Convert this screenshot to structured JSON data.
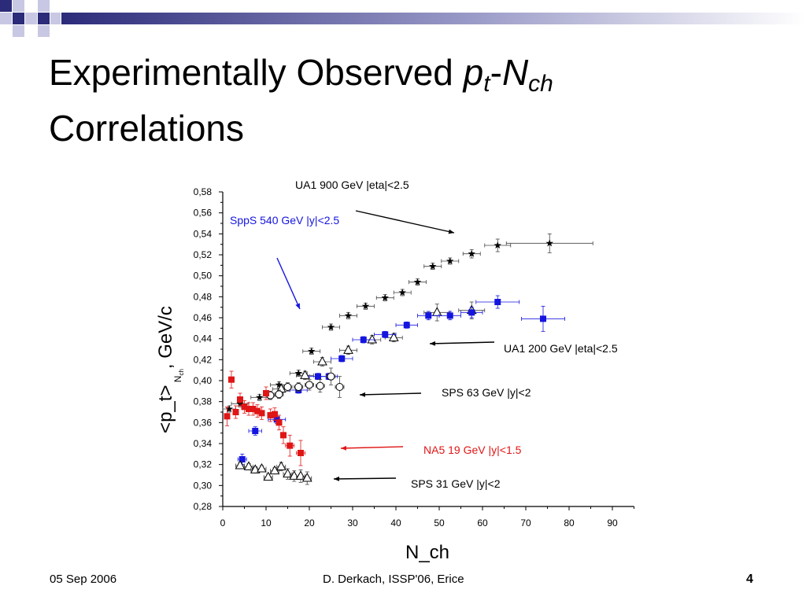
{
  "slide": {
    "title": {
      "line1_prefix": "Experimentally Observed ",
      "p": "p",
      "p_sub": "t",
      "dash": "-",
      "n": "N",
      "n_sub": "ch",
      "line2": "Correlations"
    },
    "footer": {
      "date": "05 Sep 2006",
      "center": "D. Derkach, ISSP'06, Erice",
      "page": "4"
    }
  },
  "colors": {
    "header_blue": "#2b2b7a",
    "series_black": "#000000",
    "series_blue": "#1515e0",
    "series_red": "#e01515",
    "annotation_blue": "#1515e0",
    "annotation_red": "#e01515"
  },
  "chart_data": {
    "type": "scatter",
    "xlabel": "N_ch",
    "ylabel": "<p_t>",
    "ylabel_sub": "N",
    "ylabel_subsub": "ch",
    "ylabel_suffix": ", GeV/c",
    "xlim": [
      0,
      95
    ],
    "ylim": [
      0.28,
      0.58
    ],
    "xticks": [
      0,
      10,
      20,
      30,
      40,
      50,
      60,
      70,
      80,
      90
    ],
    "yticks": [
      "0,28",
      "0,30",
      "0,32",
      "0,34",
      "0,36",
      "0,38",
      "0,40",
      "0,42",
      "0,44",
      "0,46",
      "0,48",
      "0,50",
      "0,52",
      "0,54",
      "0,56",
      "0,58"
    ],
    "series": [
      {
        "name": "UA1 900 GeV |eta|<2.5",
        "marker": "star",
        "color": "#000000",
        "points": [
          {
            "x": 1.5,
            "y": 0.373
          },
          {
            "x": 4,
            "y": 0.378
          },
          {
            "x": 8.5,
            "y": 0.384
          },
          {
            "x": 13,
            "y": 0.396
          },
          {
            "x": 17.5,
            "y": 0.407
          },
          {
            "x": 20.5,
            "y": 0.428
          },
          {
            "x": 25,
            "y": 0.451
          },
          {
            "x": 29,
            "y": 0.462
          },
          {
            "x": 33,
            "y": 0.471
          },
          {
            "x": 37.5,
            "y": 0.479
          },
          {
            "x": 41.5,
            "y": 0.484
          },
          {
            "x": 45,
            "y": 0.494
          },
          {
            "x": 48.5,
            "y": 0.509
          },
          {
            "x": 52.5,
            "y": 0.514
          },
          {
            "x": 57.5,
            "y": 0.521
          },
          {
            "x": 63.5,
            "y": 0.529
          },
          {
            "x": 75.5,
            "y": 0.531
          }
        ],
        "xerr": [
          1.5,
          2,
          2,
          2,
          2,
          2,
          2,
          2,
          2,
          2,
          2,
          2,
          2,
          2,
          2,
          3,
          10
        ],
        "yerr": [
          0.003,
          0.003,
          0.003,
          0.003,
          0.003,
          0.003,
          0.003,
          0.003,
          0.003,
          0.003,
          0.003,
          0.003,
          0.003,
          0.003,
          0.004,
          0.006,
          0.009
        ]
      },
      {
        "name": "UA1 200 GeV |eta|<2.5",
        "marker": "triangle-open",
        "color": "#000000",
        "points": [
          {
            "x": 13.5,
            "y": 0.392
          },
          {
            "x": 19,
            "y": 0.405
          },
          {
            "x": 23,
            "y": 0.418
          },
          {
            "x": 29,
            "y": 0.429
          },
          {
            "x": 34.5,
            "y": 0.439
          },
          {
            "x": 39.5,
            "y": 0.441
          },
          {
            "x": 49.5,
            "y": 0.465
          },
          {
            "x": 57.5,
            "y": 0.467
          }
        ],
        "xerr": [
          2,
          2,
          2,
          2,
          2,
          2,
          3,
          3
        ],
        "yerr": [
          0.004,
          0.004,
          0.004,
          0.004,
          0.004,
          0.004,
          0.008,
          0.008
        ]
      },
      {
        "name": "SppS 540 GeV |y|<2.5",
        "marker": "square",
        "color": "#1515e0",
        "points": [
          {
            "x": 4.5,
            "y": 0.325
          },
          {
            "x": 7.5,
            "y": 0.352
          },
          {
            "x": 12.5,
            "y": 0.363
          },
          {
            "x": 17.5,
            "y": 0.391
          },
          {
            "x": 22,
            "y": 0.404
          },
          {
            "x": 24.5,
            "y": 0.404
          },
          {
            "x": 27.5,
            "y": 0.421
          },
          {
            "x": 32.5,
            "y": 0.439
          },
          {
            "x": 37.5,
            "y": 0.444
          },
          {
            "x": 42.5,
            "y": 0.453
          },
          {
            "x": 47.5,
            "y": 0.462
          },
          {
            "x": 52.5,
            "y": 0.462
          },
          {
            "x": 57.5,
            "y": 0.465
          },
          {
            "x": 63.5,
            "y": 0.475
          },
          {
            "x": 74,
            "y": 0.459
          }
        ],
        "xerr": [
          1,
          1.5,
          2,
          2,
          2,
          2,
          2.5,
          2.5,
          2.5,
          2.5,
          2.5,
          2.5,
          2.5,
          5,
          5
        ],
        "yerr": [
          0.005,
          0.004,
          0.004,
          0.003,
          0.003,
          0.003,
          0.003,
          0.003,
          0.003,
          0.003,
          0.004,
          0.004,
          0.005,
          0.006,
          0.012
        ]
      },
      {
        "name": "SPS 63 GeV |y|<2",
        "marker": "circle-open",
        "color": "#000000",
        "points": [
          {
            "x": 11,
            "y": 0.386
          },
          {
            "x": 13,
            "y": 0.387
          },
          {
            "x": 15,
            "y": 0.394
          },
          {
            "x": 17.5,
            "y": 0.394
          },
          {
            "x": 20,
            "y": 0.396
          },
          {
            "x": 22.5,
            "y": 0.395
          },
          {
            "x": 25,
            "y": 0.404
          },
          {
            "x": 27,
            "y": 0.394
          }
        ],
        "xerr": [
          1,
          1,
          1,
          1,
          1,
          1,
          1,
          1
        ],
        "yerr": [
          0.004,
          0.004,
          0.004,
          0.004,
          0.005,
          0.006,
          0.008,
          0.01
        ]
      },
      {
        "name": "NA5 19 GeV |y|<1.5",
        "marker": "square",
        "color": "#e01515",
        "points": [
          {
            "x": 1,
            "y": 0.366
          },
          {
            "x": 2,
            "y": 0.401
          },
          {
            "x": 3,
            "y": 0.37
          },
          {
            "x": 4,
            "y": 0.382
          },
          {
            "x": 5,
            "y": 0.375
          },
          {
            "x": 6,
            "y": 0.373
          },
          {
            "x": 7,
            "y": 0.373
          },
          {
            "x": 8,
            "y": 0.371
          },
          {
            "x": 9,
            "y": 0.369
          },
          {
            "x": 10,
            "y": 0.388
          },
          {
            "x": 11,
            "y": 0.367
          },
          {
            "x": 12,
            "y": 0.368
          },
          {
            "x": 13,
            "y": 0.36
          },
          {
            "x": 14,
            "y": 0.348
          },
          {
            "x": 15.5,
            "y": 0.338
          },
          {
            "x": 18,
            "y": 0.331
          }
        ],
        "xerr": [
          0.5,
          0.5,
          0.5,
          0.5,
          0.5,
          0.5,
          0.5,
          0.5,
          0.5,
          0.5,
          0.5,
          0.5,
          0.5,
          0.5,
          1,
          1
        ],
        "yerr": [
          0.009,
          0.008,
          0.006,
          0.006,
          0.006,
          0.006,
          0.006,
          0.006,
          0.006,
          0.006,
          0.006,
          0.006,
          0.007,
          0.008,
          0.01,
          0.012
        ]
      },
      {
        "name": "SPS 31 GeV |y|<2",
        "marker": "triangle-open",
        "color": "#000000",
        "points": [
          {
            "x": 4,
            "y": 0.319
          },
          {
            "x": 6,
            "y": 0.318
          },
          {
            "x": 7.5,
            "y": 0.315
          },
          {
            "x": 9,
            "y": 0.316
          },
          {
            "x": 10.5,
            "y": 0.308
          },
          {
            "x": 12,
            "y": 0.314
          },
          {
            "x": 13.5,
            "y": 0.318
          },
          {
            "x": 15,
            "y": 0.311
          },
          {
            "x": 16.5,
            "y": 0.309
          },
          {
            "x": 18,
            "y": 0.309
          },
          {
            "x": 19.5,
            "y": 0.307
          }
        ],
        "xerr": [
          1,
          1,
          1,
          1,
          1,
          1,
          1,
          1,
          1,
          1,
          1
        ],
        "yerr": [
          0.003,
          0.003,
          0.003,
          0.003,
          0.003,
          0.003,
          0.004,
          0.005,
          0.005,
          0.006,
          0.006
        ]
      }
    ],
    "annotations": [
      {
        "text": "UA1 900 GeV |eta|<2.5",
        "color": "#000000"
      },
      {
        "text": "SppS 540 GeV |y|<2.5",
        "color": "#1515e0"
      },
      {
        "text": "UA1 200 GeV |eta|<2.5",
        "color": "#000000"
      },
      {
        "text": "SPS 63 GeV |y|<2",
        "color": "#000000"
      },
      {
        "text": "NA5 19 GeV |y|<1.5",
        "color": "#e01515"
      },
      {
        "text": "SPS 31 GeV |y|<2",
        "color": "#000000"
      }
    ]
  }
}
